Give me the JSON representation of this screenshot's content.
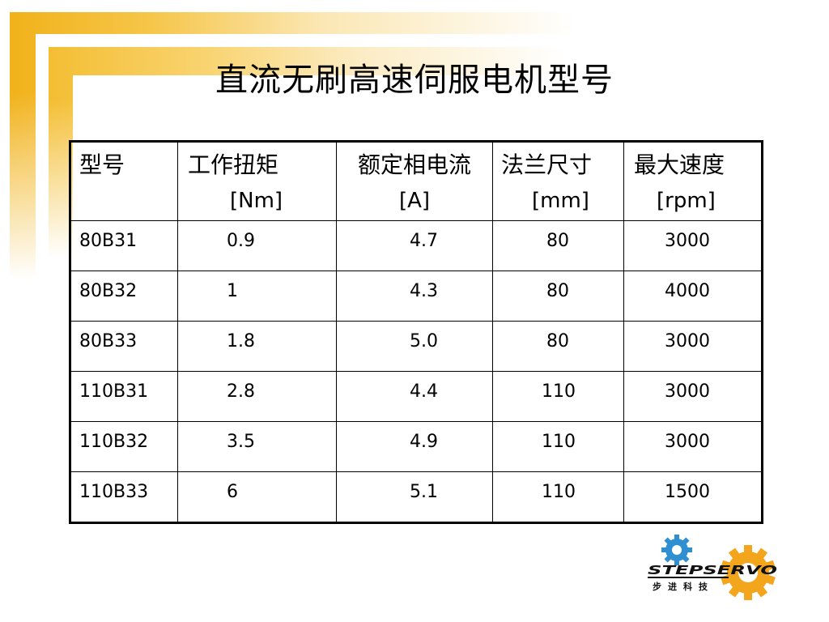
{
  "slide": {
    "title": "直流无刷高速伺服电机型号"
  },
  "table": {
    "headers": [
      {
        "cn": "型号",
        "unit": ""
      },
      {
        "cn": "工作扭矩",
        "unit": "[Nm]"
      },
      {
        "cn": "额定相电流",
        "unit": "[A]"
      },
      {
        "cn": "法兰尺寸",
        "unit": "[mm]"
      },
      {
        "cn": "最大速度",
        "unit": "[rpm]"
      }
    ],
    "rows": [
      {
        "model": "80B31",
        "torque": "0.9",
        "current": "4.7",
        "flange": "80",
        "speed": "3000"
      },
      {
        "model": "80B32",
        "torque": "1",
        "current": "4.3",
        "flange": "80",
        "speed": "4000"
      },
      {
        "model": "80B33",
        "torque": "1.8",
        "current": "5.0",
        "flange": "80",
        "speed": "3000"
      },
      {
        "model": "110B31",
        "torque": "2.8",
        "current": "4.4",
        "flange": "110",
        "speed": "3000"
      },
      {
        "model": "110B32",
        "torque": "3.5",
        "current": "4.9",
        "flange": "110",
        "speed": "3000"
      },
      {
        "model": "110B33",
        "torque": "6",
        "current": "5.1",
        "flange": "110",
        "speed": "1500"
      }
    ]
  },
  "logo": {
    "wordmark": "STEPSERVO",
    "chinese": "步进科技",
    "colors": {
      "blue_gear": "#2f8fd0",
      "orange_gear": "#f3a51b",
      "text": "#111111"
    }
  },
  "theme": {
    "accent": "#f1b21a"
  }
}
